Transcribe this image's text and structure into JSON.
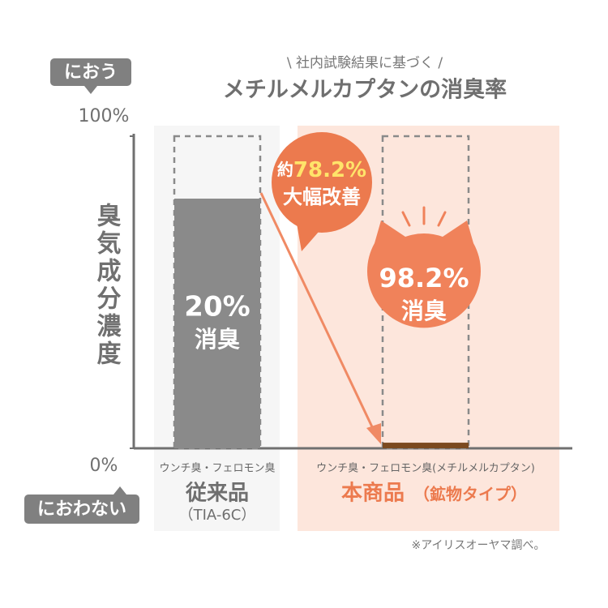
{
  "chart_data": {
    "type": "bar",
    "subtitle": "\\ 社内試験結果に基づく /",
    "title": "メチルメルカプタンの消臭率",
    "y_label": "臭気成分濃度",
    "y_top_tag": "におう",
    "y_bottom_tag": "におわない",
    "ylim": [
      0,
      100
    ],
    "yticks": [
      {
        "value": 0,
        "label": "0%"
      },
      {
        "value": 100,
        "label": "100%"
      }
    ],
    "categories": [
      "従来品",
      "本商品"
    ],
    "category_subs": [
      "ウンチ臭・フェロモン臭",
      "ウンチ臭・フェロモン臭(メチルメルカプタン)"
    ],
    "category_notes": [
      "（TIA-6C）",
      "（鉱物タイプ）"
    ],
    "series": [
      {
        "name": "臭気成分濃度",
        "colors": [
          "#8a8a8a",
          "#7b4a1f"
        ],
        "values": [
          80,
          1.8
        ]
      }
    ],
    "bar_labels": [
      {
        "value_text": "20%",
        "text": "消臭"
      },
      {
        "value_text": "98.2%",
        "text": "消臭"
      }
    ],
    "badge": {
      "prefix": "約",
      "value_text": "78.2%",
      "text": "大幅改善"
    },
    "footnote": "※アイリスオーヤマ調べ。"
  }
}
